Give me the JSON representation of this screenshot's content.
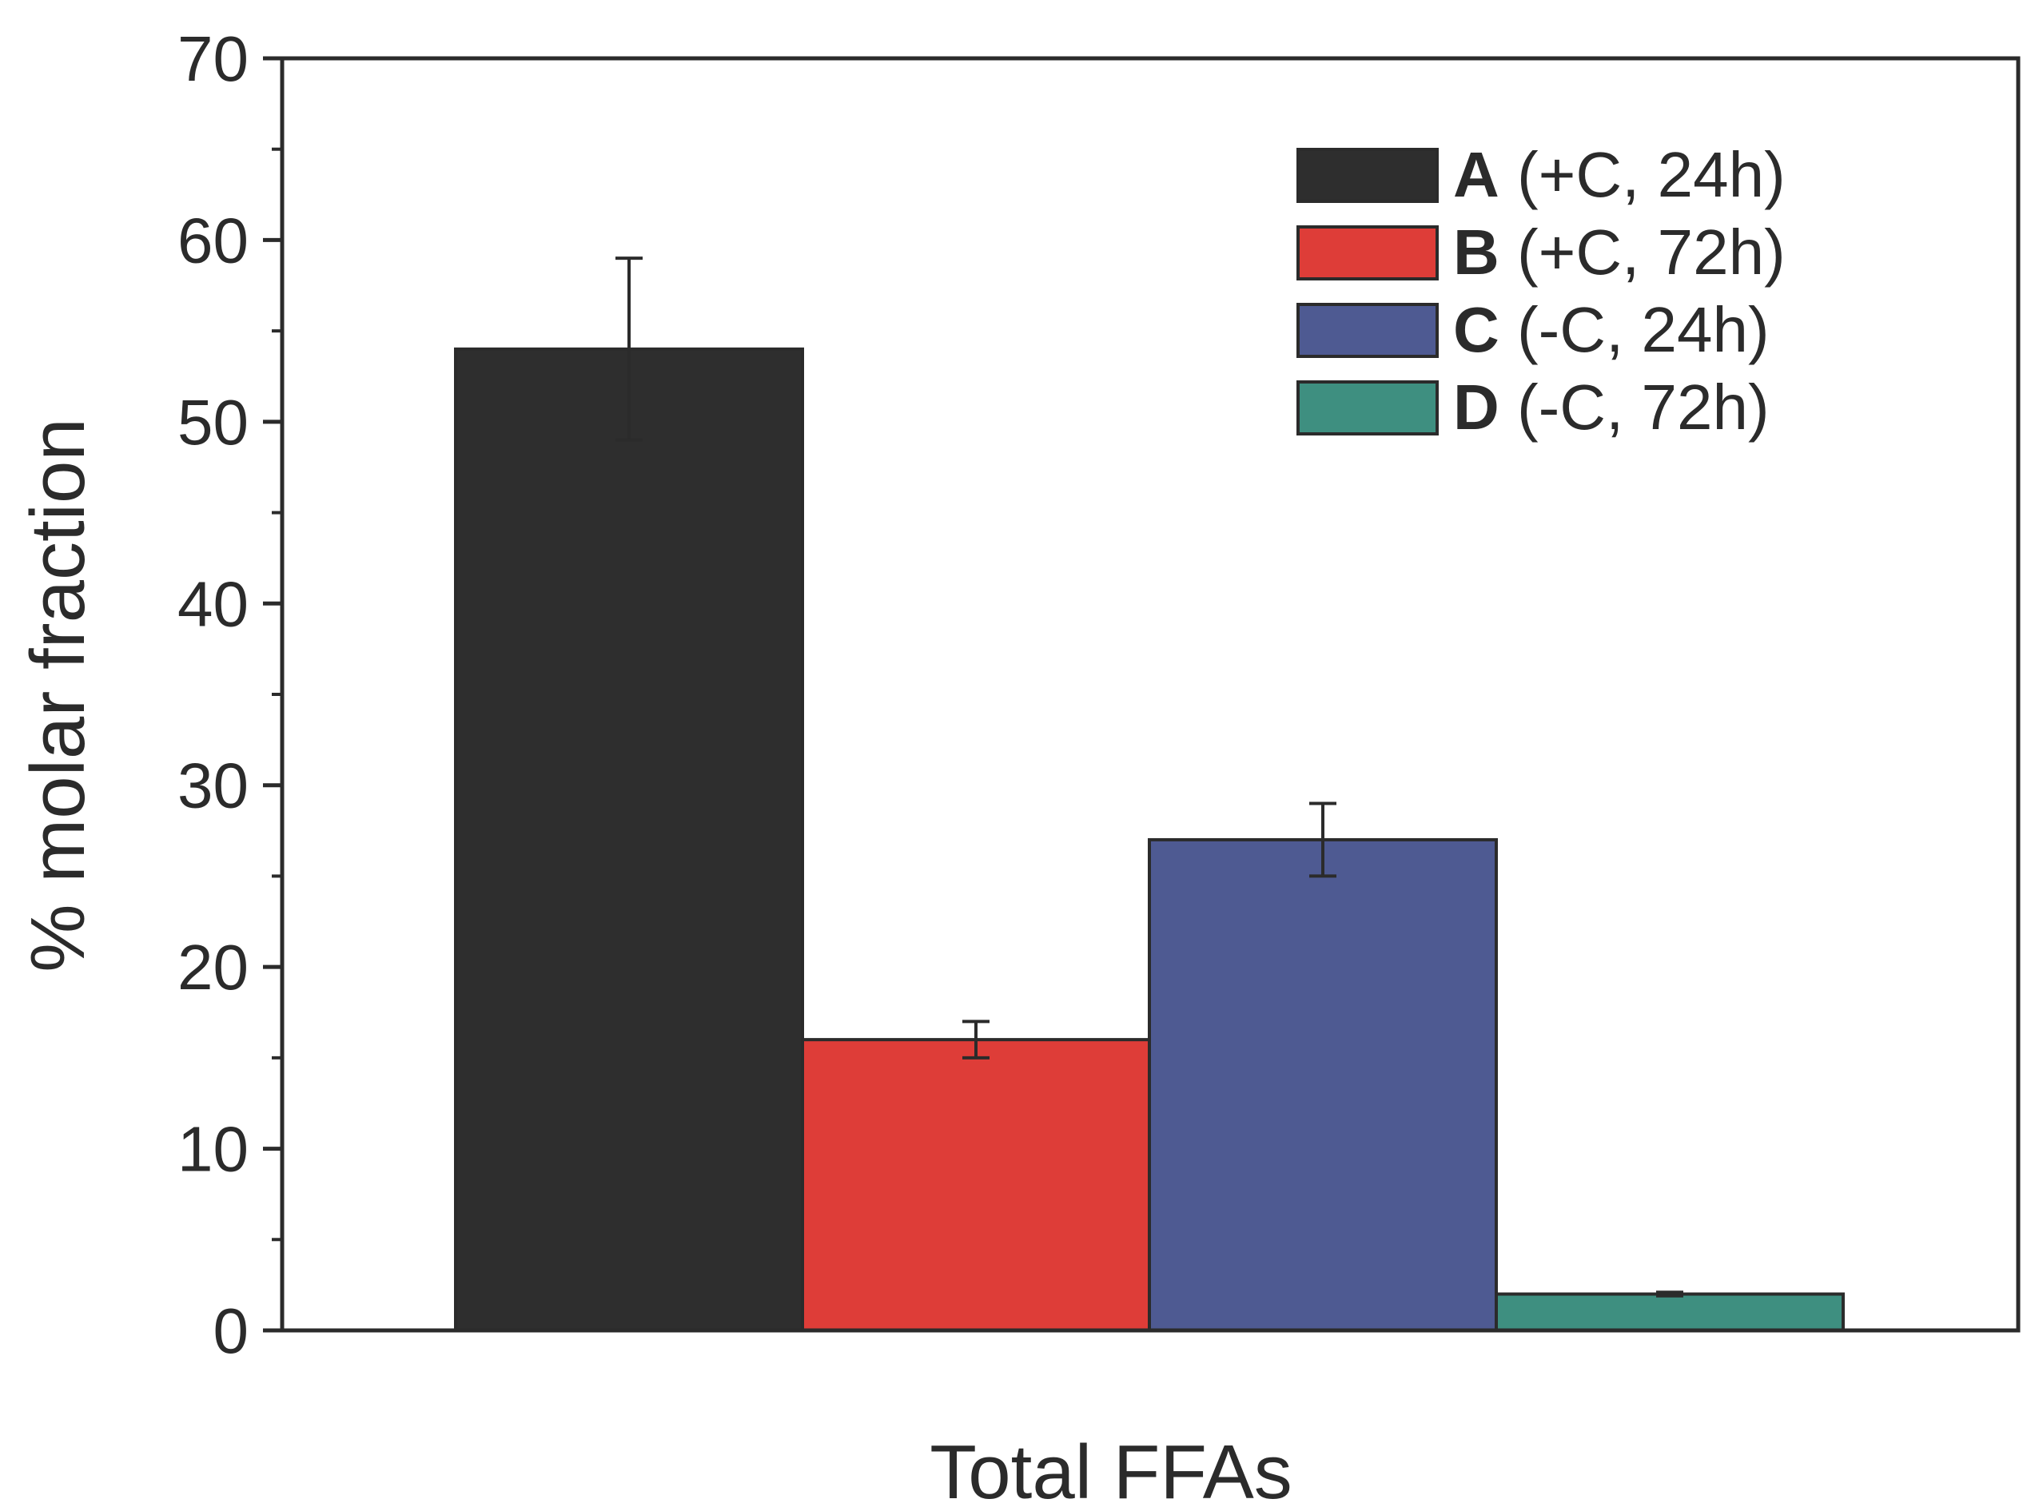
{
  "chart_data": {
    "type": "bar",
    "title": "",
    "xlabel": "Total FFAs",
    "ylabel": "% molar fraction",
    "ylim": [
      0,
      70
    ],
    "yticks": [
      0,
      10,
      20,
      30,
      40,
      50,
      60,
      70
    ],
    "ytick_labels": [
      "0",
      "10",
      "20",
      "30",
      "40",
      "50",
      "60",
      "70"
    ],
    "categories": [
      "Total FFAs"
    ],
    "grid": false,
    "legend_position": "top-right",
    "series": [
      {
        "key": "A",
        "name": "(+C, 24h)",
        "value": 54,
        "error": 5,
        "color": "#2e2e2e"
      },
      {
        "key": "B",
        "name": "(+C, 72h)",
        "value": 16,
        "error": 1,
        "color": "#de3d38"
      },
      {
        "key": "C",
        "name": "(-C, 24h)",
        "value": 27,
        "error": 2,
        "color": "#4e5a92"
      },
      {
        "key": "D",
        "name": "(-C, 72h)",
        "value": 2,
        "error": 0.1,
        "color": "#3e8f80"
      }
    ]
  }
}
